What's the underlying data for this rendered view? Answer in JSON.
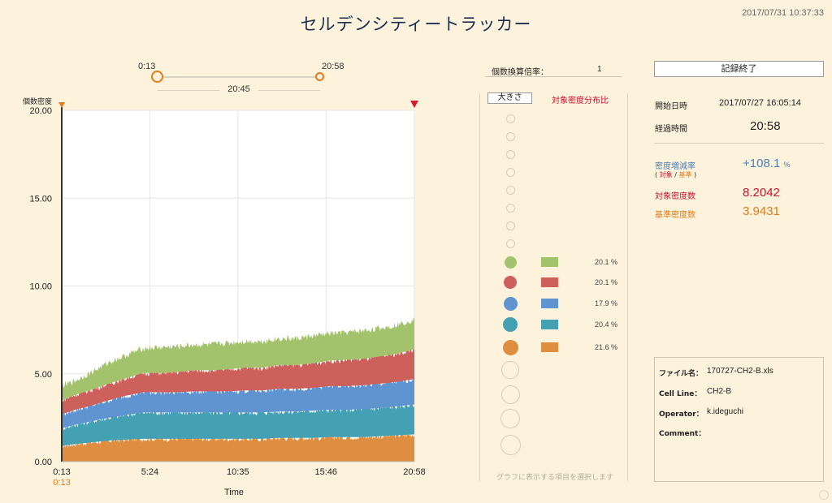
{
  "app": {
    "title": "セルデンシティートラッカー",
    "datetime": "2017/07/31 10:37:33"
  },
  "range": {
    "start": "0:13",
    "end": "20:58",
    "span": "20:45",
    "start_fraction": 0.0,
    "end_fraction": 1.0
  },
  "chart_data": {
    "type": "area",
    "stacked": true,
    "ylabel": "個数密度",
    "xlabel": "Time",
    "ylim": [
      0,
      20
    ],
    "yticks": [
      "20.00",
      "15.00",
      "10.00",
      "5.00",
      "0.00"
    ],
    "xlim": [
      0.2167,
      20.9667
    ],
    "x_ticks": [
      {
        "label": "0:13",
        "value": 0.2167
      },
      {
        "label": "5:24",
        "value": 5.4
      },
      {
        "label": "10:35",
        "value": 10.5833
      },
      {
        "label": "15:46",
        "value": 15.7667
      },
      {
        "label": "20:58",
        "value": 20.9667
      }
    ],
    "start_marker_label": "0:13",
    "grid": true,
    "colors": [
      "#df8d3f",
      "#44a0b3",
      "#5f94d1",
      "#cd605a",
      "#a3c26c"
    ],
    "x": [
      0.2167,
      1.0,
      2.0,
      3.0,
      4.0,
      5.0,
      6.0,
      7.0,
      8.0,
      9.0,
      10.0,
      11.0,
      12.0,
      13.0,
      14.0,
      15.0,
      16.0,
      17.0,
      18.0,
      19.0,
      20.0,
      20.9667
    ],
    "series": [
      {
        "values": [
          0.9,
          1.0,
          1.1,
          1.2,
          1.25,
          1.3,
          1.3,
          1.3,
          1.3,
          1.3,
          1.3,
          1.3,
          1.3,
          1.35,
          1.35,
          1.35,
          1.4,
          1.4,
          1.4,
          1.45,
          1.5,
          1.55
        ]
      },
      {
        "values": [
          1.0,
          1.1,
          1.2,
          1.3,
          1.4,
          1.5,
          1.5,
          1.5,
          1.5,
          1.5,
          1.5,
          1.5,
          1.5,
          1.5,
          1.5,
          1.55,
          1.55,
          1.55,
          1.6,
          1.6,
          1.65,
          1.7
        ]
      },
      {
        "values": [
          0.8,
          0.85,
          0.9,
          1.0,
          1.1,
          1.15,
          1.15,
          1.15,
          1.2,
          1.2,
          1.2,
          1.25,
          1.25,
          1.3,
          1.3,
          1.3,
          1.35,
          1.35,
          1.35,
          1.4,
          1.4,
          1.45
        ]
      },
      {
        "values": [
          0.8,
          0.85,
          0.9,
          0.95,
          1.0,
          1.1,
          1.1,
          1.15,
          1.2,
          1.2,
          1.25,
          1.3,
          1.3,
          1.35,
          1.35,
          1.4,
          1.45,
          1.5,
          1.5,
          1.55,
          1.6,
          1.7
        ]
      },
      {
        "values": [
          0.8,
          0.8,
          1.0,
          1.2,
          1.3,
          1.4,
          1.45,
          1.45,
          1.45,
          1.45,
          1.5,
          1.5,
          1.5,
          1.5,
          1.5,
          1.55,
          1.55,
          1.55,
          1.6,
          1.6,
          1.65,
          1.7
        ]
      }
    ]
  },
  "multiplier": {
    "label": "個数換算倍率：",
    "value": "1"
  },
  "legend": {
    "size_button": "大きさ",
    "ratio_header": "対象密度分布比",
    "hint": "グラフに表示する項目を選択します",
    "items": [
      {
        "color": "#a3c26c",
        "pct": "20.1 %"
      },
      {
        "color": "#cd605a",
        "pct": "20.1 %"
      },
      {
        "color": "#5f94d1",
        "pct": "17.9 %"
      },
      {
        "color": "#44a0b3",
        "pct": "20.4 %"
      },
      {
        "color": "#df8d3f",
        "pct": "21.6 %"
      }
    ]
  },
  "info": {
    "end_button": "記録終了",
    "start_label": "開始日時",
    "start_value": "2017/07/27 16:05:14",
    "elapsed_label": "経過時間",
    "elapsed_value": "20:58",
    "growth_label": "密度増減率",
    "growth_sub_target": "対象",
    "growth_sub_sep": " / ",
    "growth_sub_base": "基準",
    "growth_value": "+108.1",
    "growth_unit": "%",
    "target_label": "対象密度数",
    "target_value": "8.2042",
    "base_label": "基準密度数",
    "base_value": "3.9431",
    "color_blue": "#4a7fb5",
    "color_red": "#c8102e",
    "color_orange": "#e07c1a"
  },
  "file": {
    "file_label": "ファイル名：",
    "file_value": "170727-CH2-B.xls",
    "cell_label": "Cell Line：",
    "cell_value": "CH2-B",
    "operator_label": "Operator：",
    "operator_value": "k.ideguchi",
    "comment_label": "Comment：",
    "comment_value": ""
  }
}
